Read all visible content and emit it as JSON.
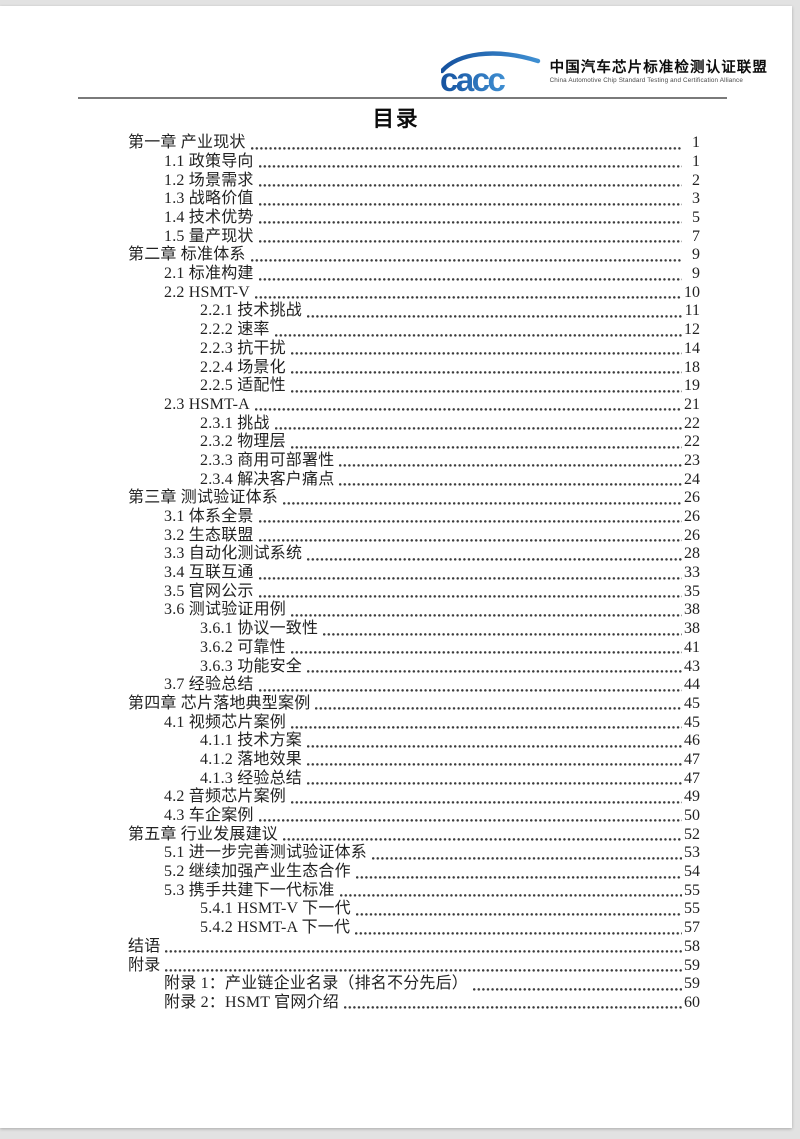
{
  "header": {
    "logo": {
      "acronym": "cacc",
      "org_name_cn": "中国汽车芯片标准检测认证联盟",
      "org_name_en": "China Automotive Chip Standard Testing and Certification Alliance",
      "brand_color_dark": "#15519e",
      "brand_color_light": "#3f8fd2"
    }
  },
  "document": {
    "title": "目录",
    "toc_entries": [
      {
        "label": "第一章 产业现状",
        "page": 1,
        "level": 0
      },
      {
        "label": "1.1 政策导向",
        "page": 1,
        "level": 1
      },
      {
        "label": "1.2 场景需求",
        "page": 2,
        "level": 1
      },
      {
        "label": "1.3 战略价值",
        "page": 3,
        "level": 1
      },
      {
        "label": "1.4 技术优势",
        "page": 5,
        "level": 1
      },
      {
        "label": "1.5 量产现状",
        "page": 7,
        "level": 1
      },
      {
        "label": "第二章 标准体系",
        "page": 9,
        "level": 0
      },
      {
        "label": "2.1 标准构建",
        "page": 9,
        "level": 1
      },
      {
        "label": "2.2 HSMT-V",
        "page": 10,
        "level": 1
      },
      {
        "label": "2.2.1 技术挑战",
        "page": 11,
        "level": 2
      },
      {
        "label": "2.2.2 速率",
        "page": 12,
        "level": 2
      },
      {
        "label": "2.2.3 抗干扰",
        "page": 14,
        "level": 2
      },
      {
        "label": "2.2.4 场景化",
        "page": 18,
        "level": 2
      },
      {
        "label": "2.2.5 适配性",
        "page": 19,
        "level": 2
      },
      {
        "label": "2.3 HSMT-A",
        "page": 21,
        "level": 1
      },
      {
        "label": "2.3.1 挑战",
        "page": 22,
        "level": 2
      },
      {
        "label": "2.3.2 物理层",
        "page": 22,
        "level": 2
      },
      {
        "label": "2.3.3 商用可部署性",
        "page": 23,
        "level": 2
      },
      {
        "label": "2.3.4 解决客户痛点",
        "page": 24,
        "level": 2
      },
      {
        "label": "第三章 测试验证体系",
        "page": 26,
        "level": 0
      },
      {
        "label": "3.1 体系全景",
        "page": 26,
        "level": 1
      },
      {
        "label": "3.2 生态联盟",
        "page": 26,
        "level": 1
      },
      {
        "label": "3.3 自动化测试系统",
        "page": 28,
        "level": 1
      },
      {
        "label": "3.4 互联互通",
        "page": 33,
        "level": 1
      },
      {
        "label": "3.5 官网公示",
        "page": 35,
        "level": 1
      },
      {
        "label": "3.6 测试验证用例",
        "page": 38,
        "level": 1
      },
      {
        "label": "3.6.1 协议一致性",
        "page": 38,
        "level": 2
      },
      {
        "label": "3.6.2 可靠性",
        "page": 41,
        "level": 2
      },
      {
        "label": "3.6.3 功能安全",
        "page": 43,
        "level": 2
      },
      {
        "label": "3.7 经验总结",
        "page": 44,
        "level": 1
      },
      {
        "label": "第四章 芯片落地典型案例",
        "page": 45,
        "level": 0
      },
      {
        "label": "4.1 视频芯片案例",
        "page": 45,
        "level": 1
      },
      {
        "label": "4.1.1 技术方案",
        "page": 46,
        "level": 2
      },
      {
        "label": "4.1.2 落地效果",
        "page": 47,
        "level": 2
      },
      {
        "label": "4.1.3 经验总结",
        "page": 47,
        "level": 2
      },
      {
        "label": "4.2 音频芯片案例",
        "page": 49,
        "level": 1
      },
      {
        "label": "4.3 车企案例",
        "page": 50,
        "level": 1
      },
      {
        "label": "第五章 行业发展建议",
        "page": 52,
        "level": 0
      },
      {
        "label": "5.1 进一步完善测试验证体系",
        "page": 53,
        "level": 1
      },
      {
        "label": "5.2 继续加强产业生态合作",
        "page": 54,
        "level": 1
      },
      {
        "label": "5.3 携手共建下一代标准",
        "page": 55,
        "level": 1
      },
      {
        "label": "5.4.1 HSMT-V 下一代",
        "page": 55,
        "level": 2
      },
      {
        "label": "5.4.2 HSMT-A 下一代",
        "page": 57,
        "level": 2
      },
      {
        "label": "结语",
        "page": 58,
        "level": 0
      },
      {
        "label": "附录",
        "page": 59,
        "level": 0
      },
      {
        "label": "附录 1：产业链企业名录（排名不分先后）",
        "page": 59,
        "level": 1
      },
      {
        "label": "附录 2：HSMT 官网介绍",
        "page": 60,
        "level": 1
      }
    ]
  }
}
